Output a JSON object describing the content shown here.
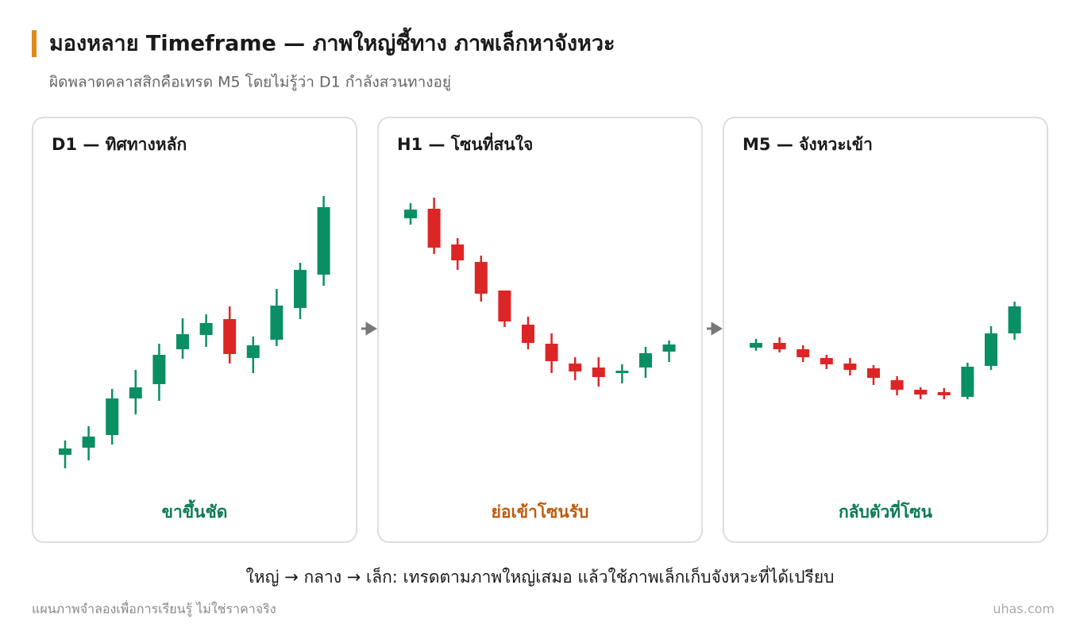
{
  "header": {
    "title": "มองหลาย Timeframe — ภาพใหญ่ชี้ทาง ภาพเล็กหาจังหวะ",
    "subtitle": "ผิดพลาดคลาสสิกคือเทรด M5 โดยไม่รู้ว่า D1 กำลังสวนทางอยู่"
  },
  "chart_data": [
    {
      "type": "candlestick",
      "title": "D1 — ทิศทางหลัก",
      "caption": "ขาขึ้นชัด",
      "caption_color": "#0a7a55",
      "up_color": "#0a8f65",
      "down_color": "#dc2626",
      "ylim": [
        0,
        380
      ],
      "open": [
        27,
        36,
        52,
        98,
        116,
        160,
        178,
        198,
        149,
        172,
        212,
        254
      ],
      "high": [
        45,
        63,
        110,
        134,
        167,
        199,
        204,
        214,
        176,
        236,
        269,
        353
      ],
      "low": [
        10,
        20,
        40,
        78,
        95,
        148,
        163,
        142,
        130,
        164,
        198,
        240
      ],
      "close": [
        35,
        50,
        98,
        112,
        153,
        179,
        193,
        154,
        165,
        215,
        260,
        339
      ]
    },
    {
      "type": "candlestick",
      "title": "H1 — โซนที่สนใจ",
      "caption": "ย่อเข้าโซนรับ",
      "caption_color": "#c05a0a",
      "up_color": "#0a8f65",
      "down_color": "#dc2626",
      "ylim": [
        0,
        380
      ],
      "open": [
        325,
        337,
        292,
        270,
        234,
        191,
        167,
        142,
        137,
        130,
        137,
        157
      ],
      "high": [
        344,
        351,
        300,
        278,
        234,
        201,
        180,
        150,
        150,
        141,
        163,
        171
      ],
      "low": [
        317,
        280,
        260,
        220,
        188,
        160,
        130,
        121,
        113,
        117,
        124,
        144
      ],
      "close": [
        336,
        288,
        272,
        230,
        195,
        168,
        145,
        132,
        125,
        133,
        155,
        166
      ]
    },
    {
      "type": "candlestick",
      "title": "M5 — จังหวะเข้า",
      "caption": "กลับตัวที่โซน",
      "caption_color": "#0a7a55",
      "up_color": "#0a8f65",
      "down_color": "#dc2626",
      "ylim": [
        0,
        380
      ],
      "open": [
        162,
        168,
        160,
        149,
        142,
        136,
        121,
        109,
        106,
        100,
        139,
        180
      ],
      "high": [
        173,
        175,
        165,
        153,
        149,
        140,
        126,
        112,
        111,
        143,
        189,
        220
      ],
      "low": [
        158,
        156,
        144,
        135,
        127,
        115,
        102,
        97,
        97,
        97,
        134,
        172
      ],
      "close": [
        168,
        160,
        150,
        141,
        134,
        124,
        109,
        103,
        102,
        138,
        180,
        214
      ]
    }
  ],
  "summary": "ใหญ่ → กลาง → เล็ก: เทรดตามภาพใหญ่เสมอ แล้วใช้ภาพเล็กเก็บจังหวะที่ได้เปรียบ",
  "footer": {
    "note": "แผนภาพจำลองเพื่อการเรียนรู้ ไม่ใช่ราคาจริง",
    "brand": "uhas.com"
  }
}
